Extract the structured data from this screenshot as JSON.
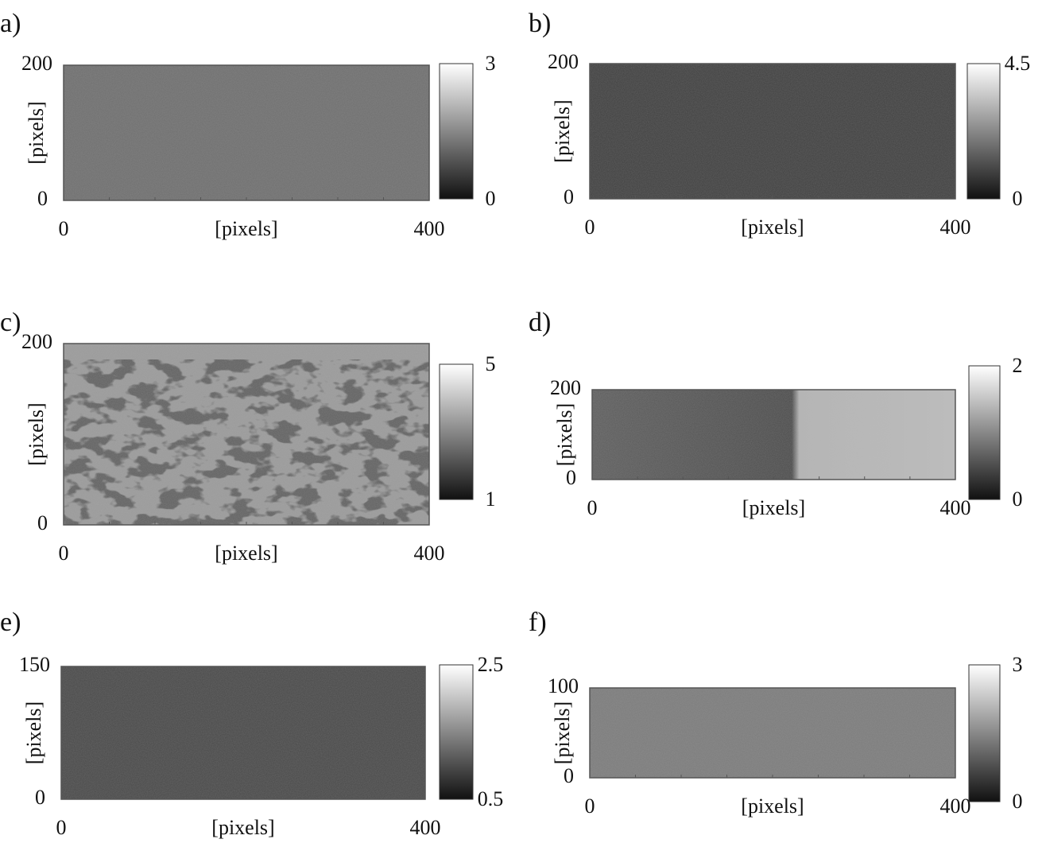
{
  "panels": [
    {
      "label": "a)",
      "x_label": "[pixels]",
      "y_label": "[pixels]",
      "xticks": [
        0,
        400
      ],
      "yticks": [
        0,
        200
      ],
      "colorbar_ticks": [
        0,
        3
      ]
    },
    {
      "label": "b)",
      "x_label": "[pixels]",
      "y_label": "[pixels]",
      "xticks": [
        0,
        400
      ],
      "yticks": [
        0,
        200
      ],
      "colorbar_ticks": [
        0,
        4.5
      ]
    },
    {
      "label": "c)",
      "x_label": "[pixels]",
      "y_label": "[pixels]",
      "xticks": [
        0,
        400
      ],
      "yticks": [
        0,
        200
      ],
      "colorbar_ticks": [
        1,
        5
      ]
    },
    {
      "label": "d)",
      "x_label": "[pixels]",
      "y_label": "[pixels]",
      "xticks": [
        0,
        400
      ],
      "yticks": [
        0,
        200
      ],
      "colorbar_ticks": [
        0,
        2
      ]
    },
    {
      "label": "e)",
      "x_label": "[pixels]",
      "y_label": "[pixels]",
      "xticks": [
        0,
        400
      ],
      "yticks": [
        0,
        150
      ],
      "colorbar_ticks": [
        0.5,
        2.5
      ]
    },
    {
      "label": "f)",
      "x_label": "[pixels]",
      "y_label": "[pixels]",
      "xticks": [
        0,
        400
      ],
      "yticks": [
        0,
        100
      ],
      "colorbar_ticks": [
        0,
        3
      ]
    }
  ]
}
